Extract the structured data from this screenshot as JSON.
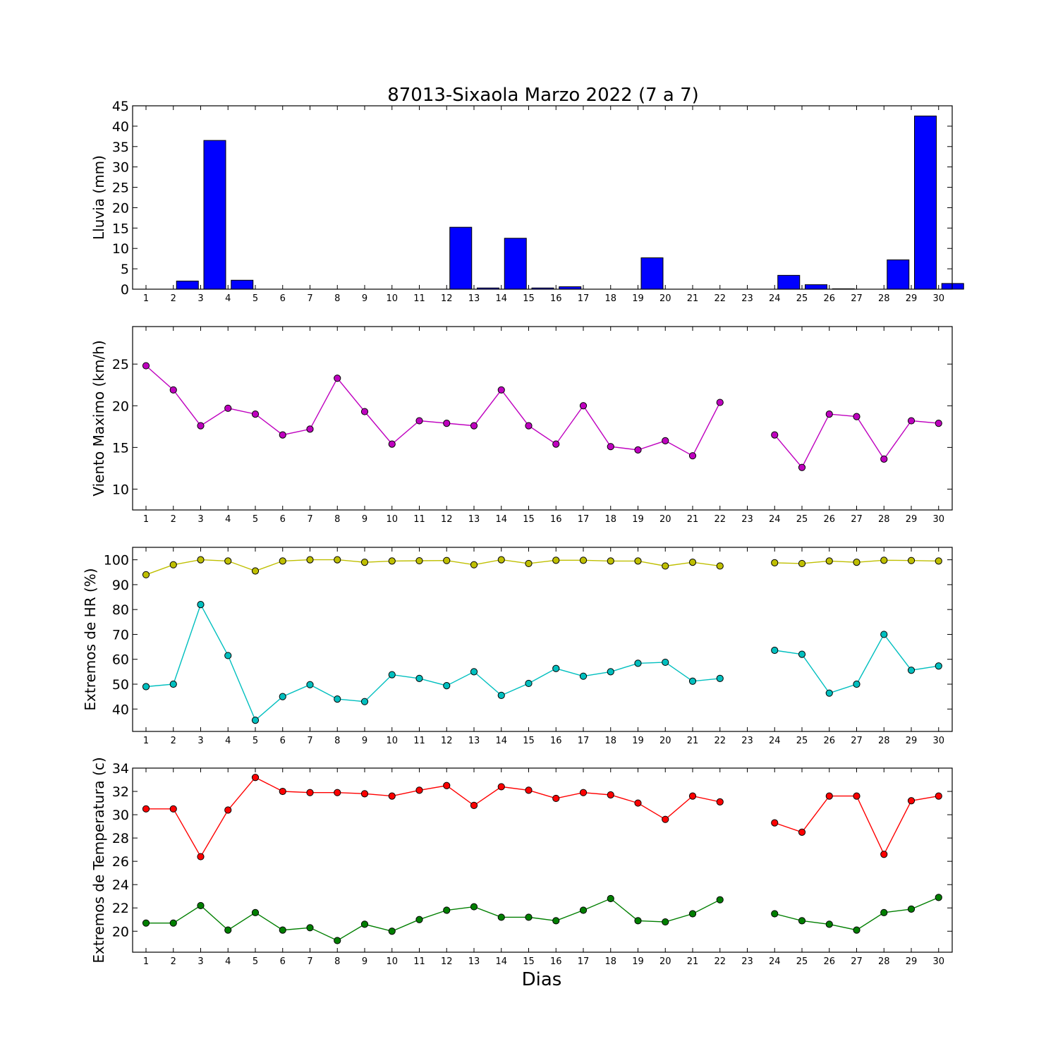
{
  "figure": {
    "title": "87013-Sixaola Marzo 2022  (7 a 7)",
    "xlabel": "Dias"
  },
  "chart_data": [
    {
      "type": "bar",
      "title": "87013-Sixaola Marzo 2022  (7 a 7)",
      "ylabel": "Lluvia (mm)",
      "xlabel": "",
      "categories": [
        1,
        2,
        3,
        4,
        5,
        6,
        7,
        8,
        9,
        10,
        11,
        12,
        13,
        14,
        15,
        16,
        17,
        18,
        19,
        20,
        21,
        22,
        23,
        24,
        25,
        26,
        27,
        28,
        29,
        30
      ],
      "ylim": [
        0,
        45
      ],
      "yticks": [
        0,
        5,
        10,
        15,
        20,
        25,
        30,
        35,
        40,
        45
      ],
      "series": [
        {
          "values": [
            0,
            2.0,
            36.5,
            2.2,
            0,
            0,
            0,
            0,
            0,
            0,
            0,
            15.2,
            0.3,
            12.5,
            0.3,
            0.6,
            0,
            0,
            7.7,
            0,
            0,
            0,
            0,
            3.4,
            1.1,
            0.1,
            0,
            7.2,
            42.5,
            1.4
          ],
          "color": "#0000ff"
        }
      ]
    },
    {
      "type": "line",
      "ylabel": "Viento Maximo (km/h)",
      "xlabel": "",
      "x": [
        1,
        2,
        3,
        4,
        5,
        6,
        7,
        8,
        9,
        10,
        11,
        12,
        13,
        14,
        15,
        16,
        17,
        18,
        19,
        20,
        21,
        22,
        23,
        24,
        25,
        26,
        27,
        28,
        29,
        30
      ],
      "ylim": [
        7.5,
        29.5
      ],
      "yticks": [
        10,
        15,
        20,
        25
      ],
      "series": [
        {
          "values": [
            24.8,
            21.9,
            17.6,
            19.7,
            19.0,
            16.5,
            17.2,
            23.3,
            19.3,
            15.4,
            18.2,
            17.9,
            17.6,
            21.9,
            17.6,
            15.4,
            20.0,
            15.1,
            14.7,
            15.8,
            14.0,
            20.4,
            null,
            16.5,
            12.6,
            19.0,
            18.7,
            13.6,
            18.2,
            17.9
          ],
          "color": "#bf00bf"
        }
      ]
    },
    {
      "type": "line",
      "ylabel": "Extremos de HR (%)",
      "xlabel": "",
      "x": [
        1,
        2,
        3,
        4,
        5,
        6,
        7,
        8,
        9,
        10,
        11,
        12,
        13,
        14,
        15,
        16,
        17,
        18,
        19,
        20,
        21,
        22,
        23,
        24,
        25,
        26,
        27,
        28,
        29,
        30
      ],
      "ylim": [
        31,
        105
      ],
      "yticks": [
        40,
        50,
        60,
        70,
        80,
        90,
        100
      ],
      "series": [
        {
          "values": [
            94,
            98,
            100,
            99.5,
            95.5,
            99.5,
            100,
            100,
            99,
            99.5,
            99.6,
            99.7,
            98,
            100,
            98.5,
            99.8,
            99.8,
            99.5,
            99.5,
            97.5,
            99,
            97.5,
            null,
            98.8,
            98.5,
            99.5,
            99,
            99.8,
            99.7,
            99.5
          ],
          "color": "#bfbf00"
        },
        {
          "values": [
            49,
            50,
            82,
            61.5,
            35.5,
            45,
            49.8,
            44,
            43,
            53.8,
            52.3,
            49.4,
            55,
            45.5,
            50.3,
            56.3,
            53.2,
            55,
            58.4,
            58.8,
            51.2,
            52.3,
            null,
            63.6,
            62,
            46.4,
            50,
            70,
            55.6,
            57.3
          ],
          "color": "#00bfbf"
        }
      ]
    },
    {
      "type": "line",
      "ylabel": "Extremos de Temperatura (c)",
      "xlabel": "Dias",
      "x": [
        1,
        2,
        3,
        4,
        5,
        6,
        7,
        8,
        9,
        10,
        11,
        12,
        13,
        14,
        15,
        16,
        17,
        18,
        19,
        20,
        21,
        22,
        23,
        24,
        25,
        26,
        27,
        28,
        29,
        30
      ],
      "ylim": [
        18.2,
        34
      ],
      "yticks": [
        20,
        22,
        24,
        26,
        28,
        30,
        32,
        34
      ],
      "series": [
        {
          "values": [
            30.5,
            30.5,
            26.4,
            30.4,
            33.2,
            32.0,
            31.9,
            31.9,
            31.8,
            31.6,
            32.1,
            32.5,
            30.8,
            32.4,
            32.1,
            31.4,
            31.9,
            31.7,
            31.0,
            29.6,
            31.6,
            31.1,
            null,
            29.3,
            28.5,
            31.6,
            31.6,
            26.6,
            31.2,
            31.6
          ],
          "color": "#ff0000"
        },
        {
          "values": [
            20.7,
            20.7,
            22.2,
            20.1,
            21.6,
            20.1,
            20.3,
            19.2,
            20.6,
            20.0,
            21.0,
            21.8,
            22.1,
            21.2,
            21.2,
            20.9,
            21.8,
            22.8,
            20.9,
            20.8,
            21.5,
            22.7,
            null,
            21.5,
            20.9,
            20.6,
            20.1,
            21.6,
            21.9,
            22.9
          ],
          "color": "#007f00"
        }
      ]
    }
  ]
}
